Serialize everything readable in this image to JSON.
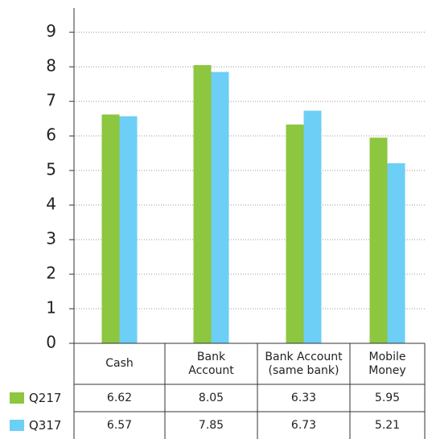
{
  "chart_data": {
    "type": "bar",
    "categories": [
      "Cash",
      "Bank Account",
      "Bank Account (same bank)",
      "Mobile Money"
    ],
    "series": [
      {
        "name": "Q217",
        "color": "#8dc63f",
        "values": [
          6.62,
          8.05,
          6.33,
          5.95
        ]
      },
      {
        "name": "Q317",
        "color": "#6dcff6",
        "values": [
          6.57,
          7.85,
          6.73,
          5.21
        ]
      }
    ],
    "ylim": [
      0,
      9.7
    ],
    "yticks": [
      0,
      1,
      2,
      3,
      4,
      5,
      6,
      7,
      8,
      9
    ],
    "grid": true
  }
}
